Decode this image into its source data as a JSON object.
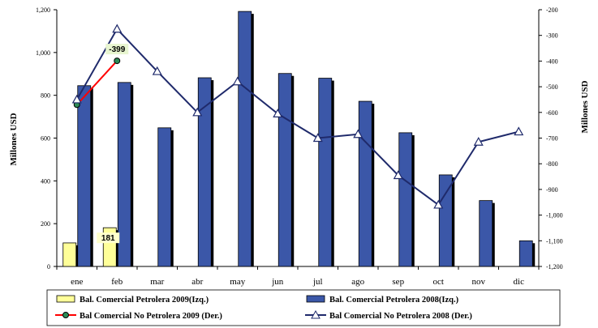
{
  "chart_data": {
    "type": "bar",
    "categories": [
      "ene",
      "feb",
      "mar",
      "abr",
      "may",
      "jun",
      "jul",
      "ago",
      "sep",
      "oct",
      "nov",
      "dic"
    ],
    "ylabel_left": "Millones USD",
    "ylabel_right": "Millones USD",
    "ylim_left": [
      0,
      1200
    ],
    "ylim_right": [
      -1200,
      -200
    ],
    "yticks_left": [
      "0",
      "200",
      "400",
      "600",
      "800",
      "1,000",
      "1,200"
    ],
    "yticks_right": [
      "-1,200",
      "-1,100",
      "-1,000",
      "-900",
      "-800",
      "-700",
      "-600",
      "-500",
      "-400",
      "-300",
      "-200"
    ],
    "series": [
      {
        "name": "Bal. Comercial Petrolera 2009(Izq.)",
        "type": "bar",
        "axis": "left",
        "color": "#ffff99",
        "values": [
          110,
          181,
          null,
          null,
          null,
          null,
          null,
          null,
          null,
          null,
          null,
          null
        ]
      },
      {
        "name": "Bal. Comercial Petrolera 2008(Izq.)",
        "type": "bar",
        "axis": "left",
        "color": "#3b57a8",
        "values": [
          845,
          860,
          648,
          882,
          1192,
          902,
          880,
          772,
          625,
          428,
          308,
          120
        ]
      },
      {
        "name": "Bal Comercial No Petrolera 2009 (Der.)",
        "type": "line",
        "axis": "right",
        "color": "#ff0000",
        "marker": "circle",
        "values": [
          -570,
          -399,
          null,
          null,
          null,
          null,
          null,
          null,
          null,
          null,
          null,
          null
        ]
      },
      {
        "name": "Bal Comercial No Petrolera 2008 (Der.)",
        "type": "line",
        "axis": "right",
        "color": "#1f2a6b",
        "marker": "triangle",
        "values": [
          -550,
          -275,
          -440,
          -600,
          -480,
          -605,
          -700,
          -685,
          -845,
          -960,
          -715,
          -675
        ]
      }
    ],
    "data_labels": [
      {
        "series": 0,
        "index": 1,
        "text": "181"
      },
      {
        "series": 2,
        "index": 1,
        "text": "-399"
      }
    ],
    "legend_position": "bottom",
    "grid": false
  }
}
